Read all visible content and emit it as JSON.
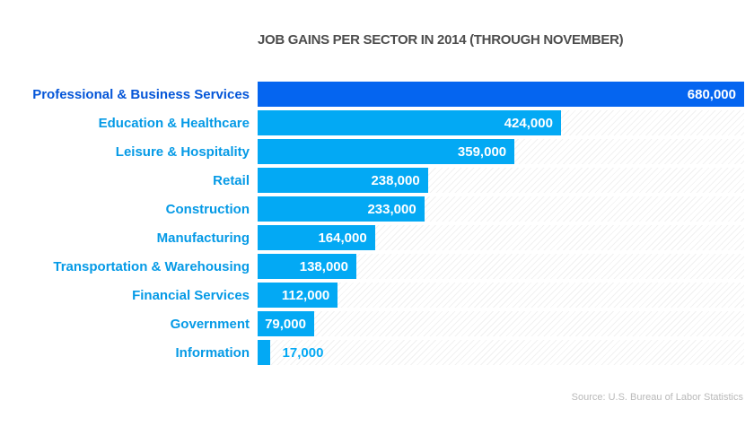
{
  "title": "JOB GAINS PER SECTOR IN 2014 (THROUGH NOVEMBER)",
  "source": "Source: U.S. Bureau of Labor Statistics",
  "colors": {
    "primary_bar": "#0565f0",
    "secondary_bar": "#03a9f4",
    "primary_label": "#0556d8",
    "secondary_label": "#059ae6",
    "title_text": "#4d4d4d",
    "value_text_inside": "#ffffff",
    "source_text": "#b9b9b9"
  },
  "chart_data": {
    "type": "bar",
    "orientation": "horizontal",
    "title": "JOB GAINS PER SECTOR IN 2014 (THROUGH NOVEMBER)",
    "xlabel": "",
    "ylabel": "",
    "xlim": [
      0,
      680000
    ],
    "grid": false,
    "legend": false,
    "track_hatch": true,
    "categories": [
      "Professional & Business Services",
      "Education & Healthcare",
      "Leisure & Hospitality",
      "Retail",
      "Construction",
      "Manufacturing",
      "Transportation & Warehousing",
      "Financial Services",
      "Government",
      "Information"
    ],
    "values": [
      680000,
      424000,
      359000,
      238000,
      233000,
      164000,
      138000,
      112000,
      79000,
      17000
    ],
    "value_labels": [
      "680,000",
      "424,000",
      "359,000",
      "238,000",
      "233,000",
      "164,000",
      "138,000",
      "112,000",
      "79,000",
      "17,000"
    ],
    "annotation": "Source: U.S. Bureau of Labor Statistics"
  }
}
